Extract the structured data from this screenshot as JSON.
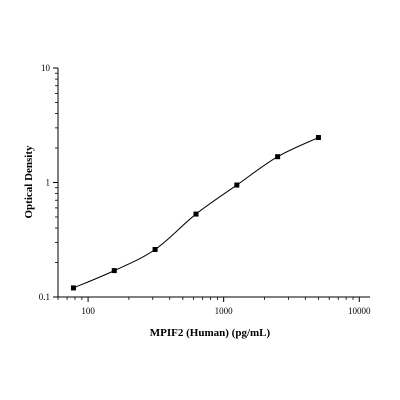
{
  "chart_data": {
    "type": "scatter",
    "title": "",
    "xlabel": "MPIF2 (Human) (pg/mL)",
    "ylabel": "Optical Density",
    "xscale": "log",
    "yscale": "log",
    "xlim": [
      60,
      12000
    ],
    "ylim": [
      0.1,
      10
    ],
    "xticks": [
      100,
      1000,
      10000
    ],
    "xtick_labels": [
      "100",
      "1000",
      "10000"
    ],
    "yticks": [
      0.1,
      1,
      10
    ],
    "ytick_labels": [
      "0.1",
      "1",
      "10"
    ],
    "grid": false,
    "legend": "none",
    "fit_curve": true,
    "marker": "square",
    "color": "#000000",
    "series": [
      {
        "x": [
          78,
          156,
          312,
          625,
          1250,
          2500,
          5000
        ],
        "y": [
          0.12,
          0.17,
          0.26,
          0.53,
          0.95,
          1.68,
          2.47
        ]
      }
    ]
  }
}
